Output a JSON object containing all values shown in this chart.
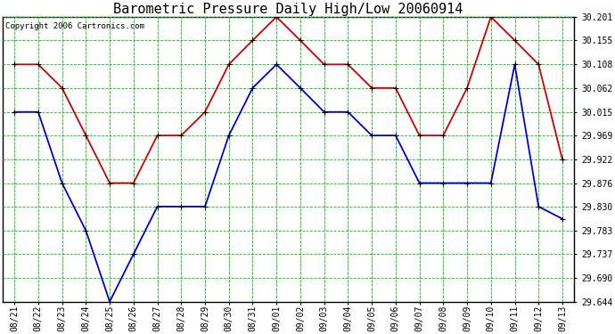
{
  "title": "Barometric Pressure Daily High/Low 20060914",
  "copyright": "Copyright 2006 Cartronics.com",
  "background_color": "#ffffff",
  "plot_background": "#ffffff",
  "grid_color": "#00cc00",
  "dates": [
    "08/21",
    "08/22",
    "08/23",
    "08/24",
    "08/25",
    "08/26",
    "08/27",
    "08/28",
    "08/29",
    "08/30",
    "08/31",
    "09/01",
    "09/02",
    "09/03",
    "09/04",
    "09/05",
    "09/06",
    "09/07",
    "09/08",
    "09/09",
    "09/10",
    "09/11",
    "09/12",
    "09/13"
  ],
  "high_values": [
    30.108,
    30.108,
    30.062,
    29.969,
    29.876,
    29.876,
    29.969,
    29.969,
    30.015,
    30.108,
    30.155,
    30.201,
    30.155,
    30.108,
    30.108,
    30.062,
    30.062,
    29.969,
    29.969,
    30.062,
    30.201,
    30.155,
    30.108,
    29.922
  ],
  "low_values": [
    30.015,
    30.015,
    29.876,
    29.783,
    29.644,
    29.737,
    29.83,
    29.83,
    29.83,
    29.969,
    30.062,
    30.108,
    30.062,
    30.015,
    30.015,
    29.969,
    29.969,
    29.876,
    29.876,
    29.876,
    29.876,
    30.108,
    29.83,
    29.806
  ],
  "high_color": "#cc0000",
  "low_color": "#0000cc",
  "marker": "+",
  "marker_size": 5,
  "ylim_min": 29.644,
  "ylim_max": 30.201,
  "yticks": [
    30.201,
    30.155,
    30.108,
    30.062,
    30.015,
    29.969,
    29.922,
    29.876,
    29.83,
    29.783,
    29.737,
    29.69,
    29.644
  ],
  "title_fontsize": 11,
  "copyright_fontsize": 6.5,
  "tick_fontsize": 7,
  "linewidth": 1.3
}
